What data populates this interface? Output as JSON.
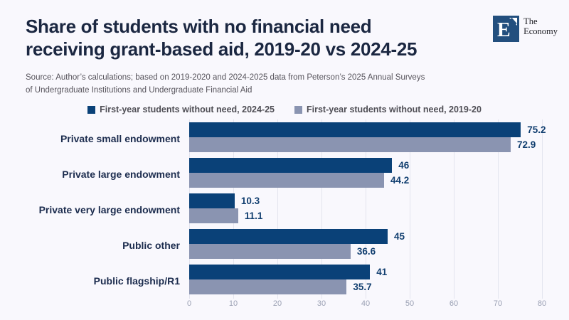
{
  "page": {
    "background": "#f9f8fd"
  },
  "header": {
    "title_line1": "Share of students with no financial need",
    "title_line2": "receiving grant-based aid, 2019-20 vs 2024-25",
    "source_line1": "Source: Author’s calculations; based on 2019-2020 and 2024-2025 data from Peterson’s 2025 Annual Surveys",
    "source_line2": "of Undergraduate Institutions and Undergraduate Financial Aid"
  },
  "logo": {
    "monogram": "E",
    "name_line1": "The",
    "name_line2": "Economy",
    "square_color": "#234f7e"
  },
  "chart_data": {
    "type": "bar",
    "orientation": "horizontal",
    "title": "Share of students with no financial need receiving grant-based aid, 2019-20 vs 2024-25",
    "categories": [
      "Private small endowment",
      "Private large endowment",
      "Private very large endowment",
      "Public other",
      "Public flagship/R1"
    ],
    "series": [
      {
        "name": "First-year students without need, 2024-25",
        "color": "#0a4178",
        "values": [
          75.2,
          46,
          10.3,
          45,
          41
        ]
      },
      {
        "name": "First-year students without need, 2019-20",
        "color": "#8a94b1",
        "values": [
          72.9,
          44.2,
          11.1,
          36.6,
          35.7
        ]
      }
    ],
    "xlim": [
      0,
      80
    ],
    "xticks": [
      0,
      10,
      20,
      30,
      40,
      50,
      60,
      70,
      80
    ],
    "grid": true,
    "legend_position": "top",
    "value_labels": true
  }
}
